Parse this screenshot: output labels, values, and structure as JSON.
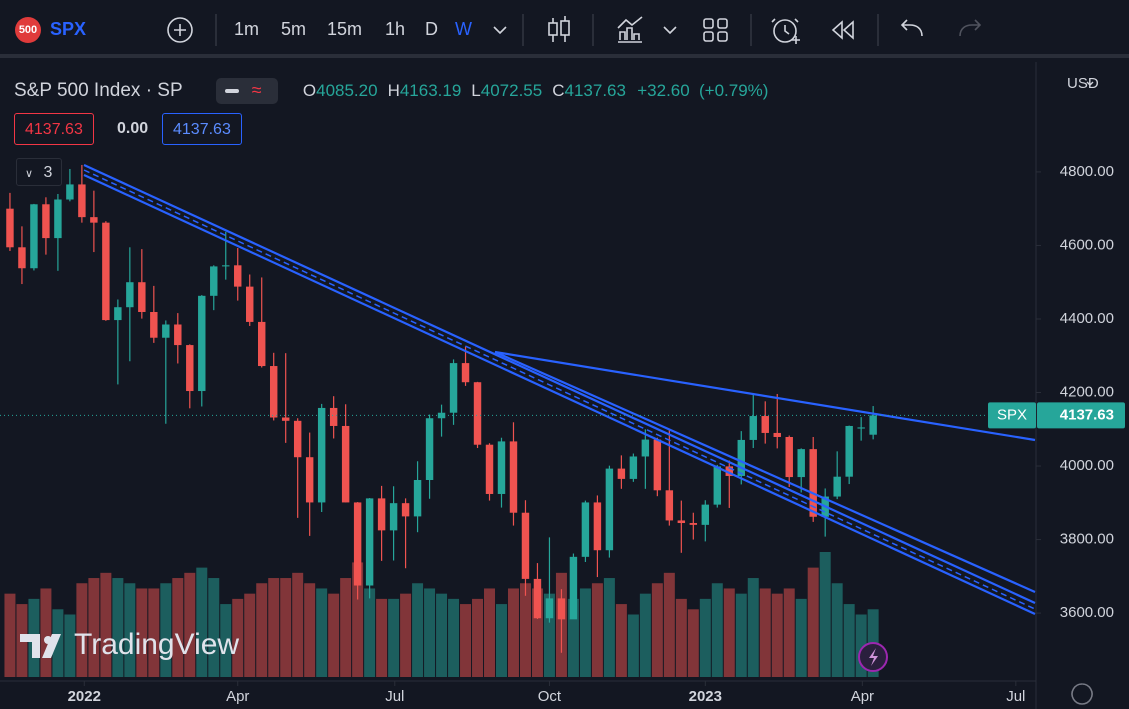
{
  "toolbar": {
    "symbol_badge": "500",
    "symbol": "SPX",
    "intervals": [
      "1m",
      "5m",
      "15m",
      "1h",
      "D",
      "W"
    ]
  },
  "legend": {
    "title": "S&P 500 Index · SP",
    "ohlc": [
      {
        "label": "O",
        "value": "4085.20"
      },
      {
        "label": "H",
        "value": "4163.19"
      },
      {
        "label": "L",
        "value": "4072.55"
      },
      {
        "label": "C",
        "value": "4137.63"
      }
    ],
    "change": "+32.60",
    "change_pct": "(+0.79%)",
    "sell": "4137.63",
    "spread": "0.00",
    "buy": "4137.63",
    "indicators_count": "3"
  },
  "currency": "USD",
  "watermark": "TradingView",
  "chart_data": {
    "type": "candlestick",
    "open": [
      4700,
      4595,
      4538,
      4712,
      4620,
      4725,
      4766,
      4677,
      4662,
      4397,
      4432,
      4500,
      4419,
      4349,
      4385,
      4329,
      4204,
      4463,
      4543,
      4546,
      4488,
      4392,
      4272,
      4132,
      4123,
      4024,
      3901,
      4158,
      4109,
      3901,
      3675,
      3912,
      3825,
      3899,
      3863,
      3962,
      4130,
      4145,
      4280,
      4228,
      4058,
      3924,
      4067,
      3873,
      3693,
      3586,
      3640,
      3583,
      3753,
      3901,
      3771,
      3993,
      3965,
      4026,
      4072,
      3934,
      3852,
      3845,
      3840,
      3895,
      3999,
      3973,
      4071,
      4136,
      4090,
      4079,
      3970,
      4046,
      3862,
      3917,
      3971,
      4102,
      4085.2
    ],
    "high": [
      4743,
      4652,
      4713,
      4731,
      4740,
      4808,
      4819,
      4749,
      4666,
      4453,
      4595,
      4590,
      4490,
      4396,
      4416,
      4331,
      4465,
      4546,
      4637,
      4593,
      4521,
      4513,
      4308,
      4307,
      4130,
      4091,
      4169,
      4190,
      4168,
      3902,
      3913,
      3946,
      3945,
      3912,
      4013,
      4140,
      4167,
      4290,
      4325,
      4229,
      4062,
      4077,
      4119,
      3907,
      3736,
      3806,
      3665,
      3762,
      3906,
      3920,
      4001,
      4029,
      4034,
      4100,
      4077,
      4101,
      3906,
      3873,
      3907,
      4003,
      4015,
      4095,
      4195,
      4176,
      4196,
      4083,
      4048,
      4079,
      3939,
      4040,
      4110,
      4133,
      4163.19
    ],
    "low": [
      4585,
      4495,
      4532,
      4575,
      4531,
      4720,
      4662,
      4582,
      4395,
      4222,
      4285,
      4401,
      4335,
      4115,
      4279,
      4157,
      4162,
      4424,
      4507,
      4450,
      4381,
      4268,
      4124,
      4063,
      3859,
      3810,
      3875,
      4075,
      3901,
      3637,
      3640,
      3742,
      3743,
      3722,
      3820,
      3911,
      4080,
      4112,
      4218,
      4049,
      3906,
      3887,
      3838,
      3647,
      3584,
      3574,
      3492,
      3591,
      3739,
      3698,
      3751,
      3938,
      3957,
      3938,
      3918,
      3838,
      3764,
      3800,
      3795,
      3887,
      3886,
      3950,
      4049,
      4061,
      4048,
      3943,
      3928,
      3848,
      3808,
      3910,
      3951,
      4069,
      4072.55
    ],
    "close": [
      4595,
      4538,
      4712,
      4620,
      4725,
      4766,
      4677,
      4662,
      4397,
      4432,
      4500,
      4419,
      4349,
      4385,
      4329,
      4204,
      4463,
      4543,
      4546,
      4488,
      4392,
      4272,
      4132,
      4123,
      4024,
      3901,
      4158,
      4109,
      3901,
      3675,
      3912,
      3825,
      3899,
      3863,
      3962,
      4130,
      4145,
      4280,
      4228,
      4058,
      3924,
      4067,
      3873,
      3693,
      3586,
      3640,
      3583,
      3753,
      3901,
      3771,
      3993,
      3965,
      4026,
      4072,
      3934,
      3852,
      3845,
      3840,
      3895,
      3999,
      3973,
      4071,
      4136,
      4090,
      4079,
      3970,
      4046,
      3862,
      3917,
      3971,
      4109,
      4105,
      4137.63
    ],
    "volume": [
      16,
      14,
      15,
      17,
      13,
      12,
      18,
      19,
      20,
      19,
      18,
      17,
      17,
      18,
      19,
      20,
      21,
      19,
      14,
      15,
      16,
      18,
      19,
      19,
      20,
      18,
      17,
      16,
      19,
      22,
      17,
      15,
      15,
      16,
      18,
      17,
      16,
      15,
      14,
      15,
      17,
      14,
      17,
      18,
      17,
      16,
      20,
      15,
      17,
      18,
      19,
      14,
      12,
      16,
      18,
      20,
      15,
      13,
      15,
      18,
      17,
      16,
      19,
      17,
      16,
      17,
      15,
      21,
      24,
      18,
      14,
      12,
      13
    ],
    "up_color": "#26a69a",
    "down_color": "#ef5350",
    "xlim": [
      -0.83,
      85.5
    ],
    "xticks": [
      {
        "value": 6.2,
        "label": "2022"
      },
      {
        "value": 19,
        "label": "Apr"
      },
      {
        "value": 32.1,
        "label": "Jul"
      },
      {
        "value": 45,
        "label": "Oct"
      },
      {
        "value": 58,
        "label": "2023"
      },
      {
        "value": 71.1,
        "label": "Apr"
      },
      {
        "value": 83.9,
        "label": "Jul"
      }
    ],
    "ylim": [
      3418,
      5099
    ],
    "yticks": [
      {
        "value": 3600,
        "label": "3600.00"
      },
      {
        "value": 3800,
        "label": "3800.00"
      },
      {
        "value": 4000,
        "label": "4000.00"
      },
      {
        "value": 4200,
        "label": "4200.00"
      },
      {
        "value": 4400,
        "label": "4400.00"
      },
      {
        "value": 4600,
        "label": "4600.00"
      },
      {
        "value": 4800,
        "label": "4800.00"
      }
    ],
    "last_price": {
      "label": "SPX",
      "value": 4137.63
    }
  }
}
